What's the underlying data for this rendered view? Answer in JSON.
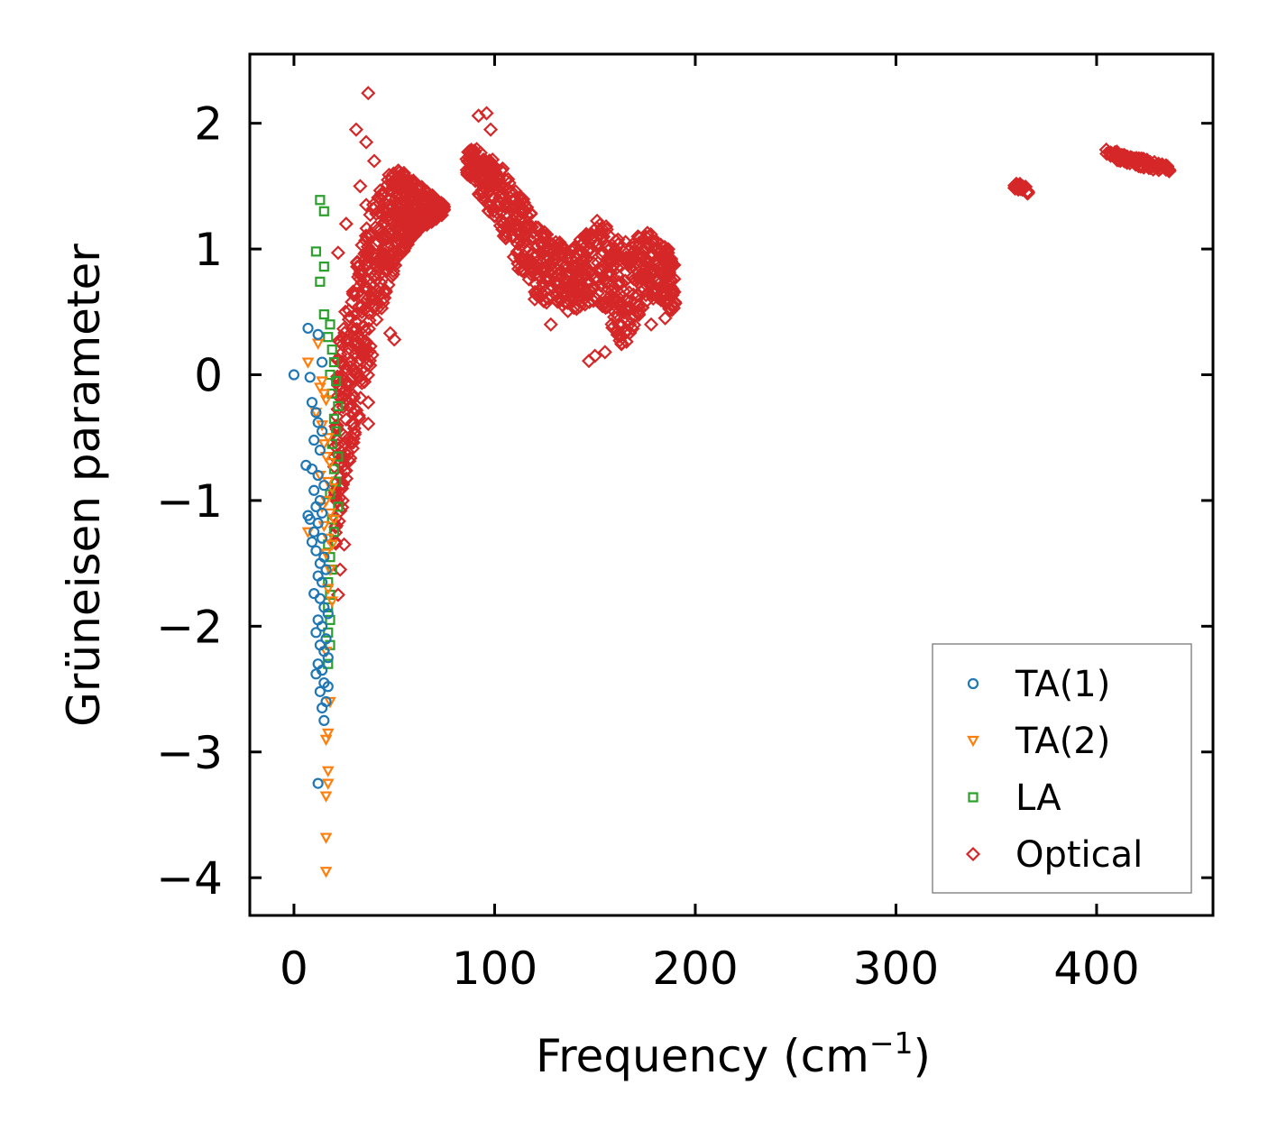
{
  "chart_data": {
    "type": "scatter",
    "title": "",
    "xlabel": "Frequency (cm",
    "xlabel_superscript": "−1",
    "xlabel_suffix": ")",
    "ylabel": "Grüneisen parameter",
    "xlim": [
      -22,
      458
    ],
    "ylim": [
      -4.3,
      2.55
    ],
    "xticks": [
      0,
      100,
      200,
      300,
      400
    ],
    "xtick_labels": [
      "0",
      "100",
      "200",
      "300",
      "400"
    ],
    "yticks": [
      -4,
      -3,
      -2,
      -1,
      0,
      1,
      2
    ],
    "ytick_labels": [
      "−4",
      "−3",
      "−2",
      "−1",
      "0",
      "1",
      "2"
    ],
    "legend_position": "lower-right",
    "series": [
      {
        "name": "TA(1)",
        "marker": "circle",
        "color": "#1f77b4",
        "points": [
          [
            0,
            0
          ],
          [
            7,
            0.37
          ],
          [
            12,
            0.32
          ],
          [
            8,
            -0.02
          ],
          [
            14,
            0.1
          ],
          [
            9,
            -0.22
          ],
          [
            11,
            -0.3
          ],
          [
            12,
            -0.38
          ],
          [
            14,
            -0.45
          ],
          [
            10,
            -0.52
          ],
          [
            13,
            -0.6
          ],
          [
            6,
            -0.72
          ],
          [
            9,
            -0.75
          ],
          [
            12,
            -0.8
          ],
          [
            15,
            -0.88
          ],
          [
            10,
            -0.92
          ],
          [
            13,
            -1.0
          ],
          [
            11,
            -1.05
          ],
          [
            14,
            -1.1
          ],
          [
            7,
            -1.12
          ],
          [
            8,
            -1.15
          ],
          [
            12,
            -1.18
          ],
          [
            10,
            -1.25
          ],
          [
            14,
            -1.3
          ],
          [
            9,
            -1.33
          ],
          [
            11,
            -1.4
          ],
          [
            15,
            -1.45
          ],
          [
            13,
            -1.5
          ],
          [
            16,
            -1.55
          ],
          [
            12,
            -1.6
          ],
          [
            14,
            -1.65
          ],
          [
            10,
            -1.74
          ],
          [
            13,
            -1.78
          ],
          [
            15,
            -1.85
          ],
          [
            17,
            -1.9
          ],
          [
            12,
            -1.95
          ],
          [
            14,
            -2.0
          ],
          [
            11,
            -2.05
          ],
          [
            16,
            -2.1
          ],
          [
            13,
            -2.15
          ],
          [
            15,
            -2.2
          ],
          [
            17,
            -2.25
          ],
          [
            12,
            -2.3
          ],
          [
            14,
            -2.35
          ],
          [
            11,
            -2.38
          ],
          [
            15,
            -2.45
          ],
          [
            13,
            -2.52
          ],
          [
            16,
            -2.6
          ],
          [
            14,
            -2.65
          ],
          [
            15,
            -2.75
          ],
          [
            12,
            -3.25
          ],
          [
            17,
            -2.48
          ]
        ]
      },
      {
        "name": "TA(2)",
        "marker": "triangle-down",
        "color": "#ff7f0e",
        "points": [
          [
            7,
            0.1
          ],
          [
            12,
            0.25
          ],
          [
            13,
            -0.1
          ],
          [
            14,
            -0.05
          ],
          [
            15,
            -0.15
          ],
          [
            16,
            -0.2
          ],
          [
            11,
            -0.3
          ],
          [
            14,
            -0.4
          ],
          [
            17,
            -0.5
          ],
          [
            15,
            -0.55
          ],
          [
            16,
            -0.65
          ],
          [
            18,
            -0.7
          ],
          [
            13,
            -0.8
          ],
          [
            17,
            -0.85
          ],
          [
            19,
            -0.9
          ],
          [
            16,
            -1.0
          ],
          [
            14,
            -1.05
          ],
          [
            18,
            -1.1
          ],
          [
            20,
            -1.15
          ],
          [
            15,
            -1.2
          ],
          [
            7,
            -1.25
          ],
          [
            17,
            -1.3
          ],
          [
            19,
            -1.35
          ],
          [
            16,
            -1.42
          ],
          [
            18,
            -1.55
          ],
          [
            17,
            -1.7
          ],
          [
            19,
            -1.8
          ],
          [
            16,
            -2.2
          ],
          [
            18,
            -2.6
          ],
          [
            17,
            -2.85
          ],
          [
            16,
            -2.9
          ],
          [
            17,
            -3.15
          ],
          [
            17,
            -3.25
          ],
          [
            16,
            -3.35
          ],
          [
            16,
            -3.68
          ],
          [
            16,
            -3.95
          ]
        ]
      },
      {
        "name": "LA",
        "marker": "square",
        "color": "#2ca02c",
        "points": [
          [
            13,
            1.39
          ],
          [
            15,
            1.3
          ],
          [
            11,
            0.98
          ],
          [
            15,
            0.86
          ],
          [
            13,
            0.74
          ],
          [
            15,
            0.48
          ],
          [
            18,
            0.4
          ],
          [
            17,
            0.3
          ],
          [
            19,
            0.2
          ],
          [
            20,
            0.1
          ],
          [
            18,
            0.0
          ],
          [
            21,
            -0.05
          ],
          [
            19,
            -0.15
          ],
          [
            22,
            -0.25
          ],
          [
            20,
            -0.35
          ],
          [
            21,
            -0.45
          ],
          [
            19,
            -0.55
          ],
          [
            22,
            -0.65
          ],
          [
            20,
            -0.75
          ],
          [
            21,
            -0.85
          ],
          [
            18,
            -0.95
          ],
          [
            22,
            -1.05
          ],
          [
            19,
            -1.15
          ],
          [
            20,
            -1.25
          ],
          [
            17,
            -1.35
          ],
          [
            18,
            -1.45
          ],
          [
            19,
            -1.55
          ],
          [
            17,
            -1.65
          ],
          [
            18,
            -1.75
          ],
          [
            17,
            -1.85
          ],
          [
            18,
            -1.95
          ],
          [
            17,
            -2.05
          ],
          [
            18,
            -2.15
          ],
          [
            17,
            -2.3
          ]
        ]
      },
      {
        "name": "Optical",
        "marker": "diamond",
        "color": "#d62728",
        "points": [
          [
            37,
            2.24
          ],
          [
            31,
            1.95
          ],
          [
            36,
            1.85
          ],
          [
            40,
            1.7
          ],
          [
            33,
            1.5
          ],
          [
            36,
            1.35
          ],
          [
            26,
            1.2
          ],
          [
            22,
            0.97
          ],
          [
            48,
            0.33
          ],
          [
            50,
            0.28
          ],
          [
            37,
            -0.39
          ],
          [
            37,
            -0.22
          ],
          [
            25,
            -1.35
          ],
          [
            23,
            -1.55
          ],
          [
            22,
            -1.75
          ],
          [
            92,
            2.06
          ],
          [
            96,
            2.08
          ],
          [
            98,
            1.95
          ],
          [
            104,
            1.64
          ],
          [
            120,
            0.6
          ],
          [
            128,
            0.4
          ],
          [
            147,
            0.11
          ],
          [
            150,
            0.15
          ],
          [
            155,
            0.18
          ],
          [
            178,
            0.4
          ],
          [
            185,
            0.45
          ]
        ],
        "clusters": [
          {
            "x_range": [
              20,
              75
            ],
            "y_top": [
              0.1,
              0.7,
              1.2,
              1.55,
              1.65,
              1.55,
              1.45,
              1.35
            ],
            "y_bottom": [
              -1.5,
              -0.7,
              -0.1,
              0.5,
              0.9,
              1.1,
              1.2,
              1.28
            ],
            "count": 650
          },
          {
            "x_range": [
              86,
              190
            ],
            "y_top": [
              1.85,
              1.72,
              1.45,
              1.15,
              0.98,
              1.25,
              1.05,
              1.15,
              0.95
            ],
            "y_bottom": [
              1.6,
              1.25,
              0.8,
              0.55,
              0.5,
              0.6,
              0.2,
              0.6,
              0.5
            ],
            "count": 750
          },
          {
            "x_range": [
              359,
              366
            ],
            "y_top": [
              1.54,
              1.5
            ],
            "y_bottom": [
              1.48,
              1.44
            ],
            "count": 25
          },
          {
            "x_range": [
              404,
              437
            ],
            "y_top": [
              1.8,
              1.66
            ],
            "y_bottom": [
              1.72,
              1.6
            ],
            "count": 90
          }
        ]
      }
    ]
  }
}
